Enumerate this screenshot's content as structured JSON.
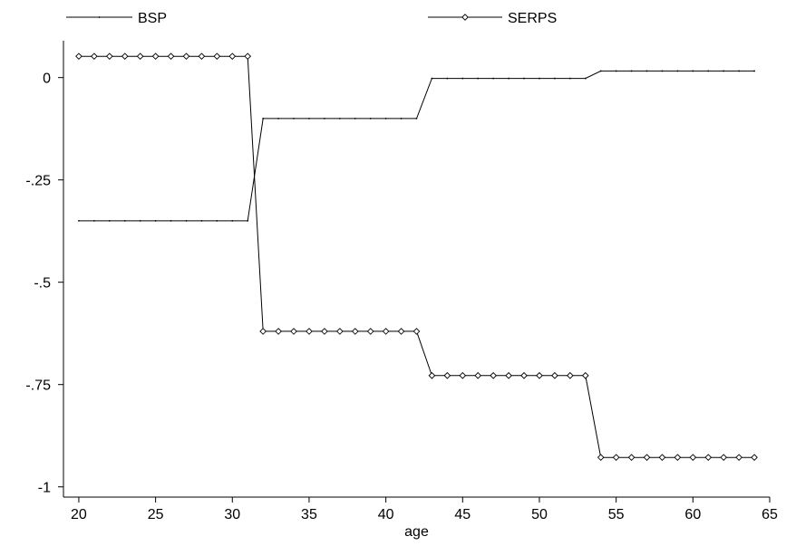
{
  "chart_data": {
    "type": "line",
    "title": "",
    "xlabel": "age",
    "ylabel": "",
    "xlim": [
      19,
      65
    ],
    "ylim": [
      -1.025,
      0.09
    ],
    "x_ticks": [
      20,
      25,
      30,
      35,
      40,
      45,
      50,
      55,
      60,
      65
    ],
    "x_tick_labels": [
      "20",
      "25",
      "30",
      "35",
      "40",
      "45",
      "50",
      "55",
      "60",
      "65"
    ],
    "y_ticks": [
      0,
      -0.25,
      -0.5,
      -0.75,
      -1
    ],
    "y_tick_labels": [
      "0",
      "-.25",
      "-.5",
      "-.75",
      "-1"
    ],
    "grid": false,
    "legend_position": "top",
    "x": [
      20,
      21,
      22,
      23,
      24,
      25,
      26,
      27,
      28,
      29,
      30,
      31,
      32,
      33,
      34,
      35,
      36,
      37,
      38,
      39,
      40,
      41,
      42,
      43,
      44,
      45,
      46,
      47,
      48,
      49,
      50,
      51,
      52,
      53,
      54,
      55,
      56,
      57,
      58,
      59,
      60,
      61,
      62,
      63,
      64
    ],
    "series": [
      {
        "name": "BSP",
        "marker": "dot",
        "values": [
          -0.35,
          -0.35,
          -0.35,
          -0.35,
          -0.35,
          -0.35,
          -0.35,
          -0.35,
          -0.35,
          -0.35,
          -0.35,
          -0.35,
          -0.1,
          -0.1,
          -0.1,
          -0.1,
          -0.1,
          -0.1,
          -0.1,
          -0.1,
          -0.1,
          -0.1,
          -0.1,
          -0.002,
          -0.002,
          -0.002,
          -0.002,
          -0.002,
          -0.002,
          -0.002,
          -0.002,
          -0.002,
          -0.002,
          -0.002,
          0.016,
          0.016,
          0.016,
          0.016,
          0.016,
          0.016,
          0.016,
          0.016,
          0.016,
          0.016,
          0.016
        ]
      },
      {
        "name": "SERPS",
        "marker": "diamond",
        "values": [
          0.052,
          0.052,
          0.052,
          0.052,
          0.052,
          0.052,
          0.052,
          0.052,
          0.052,
          0.052,
          0.052,
          0.052,
          -0.62,
          -0.62,
          -0.62,
          -0.62,
          -0.62,
          -0.62,
          -0.62,
          -0.62,
          -0.62,
          -0.62,
          -0.62,
          -0.728,
          -0.728,
          -0.728,
          -0.728,
          -0.728,
          -0.728,
          -0.728,
          -0.728,
          -0.728,
          -0.728,
          -0.728,
          -0.928,
          -0.928,
          -0.928,
          -0.928,
          -0.928,
          -0.928,
          -0.928,
          -0.928,
          -0.928,
          -0.928,
          -0.928
        ]
      }
    ]
  }
}
